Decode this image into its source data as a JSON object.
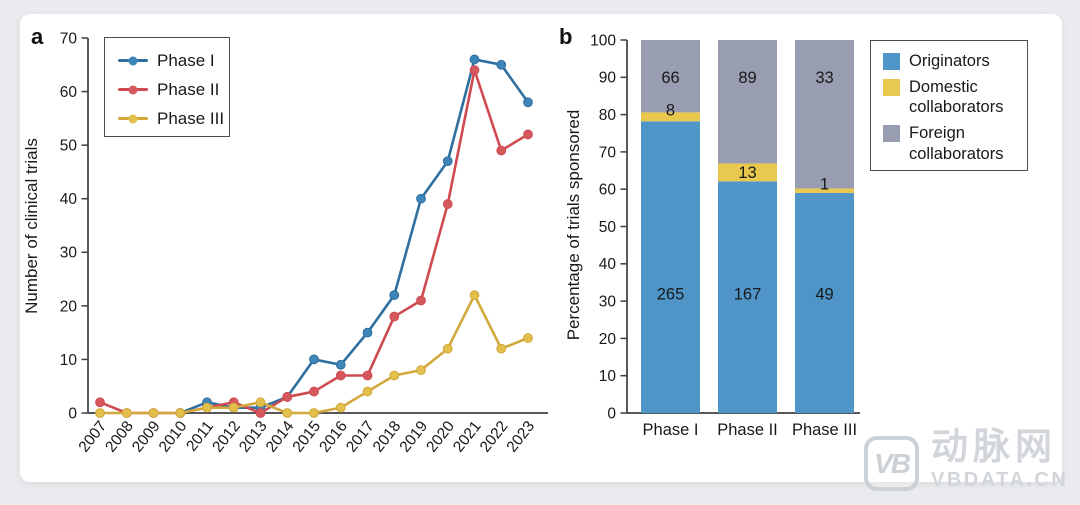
{
  "page": {
    "background_color": "#e9ebee",
    "card_background_color": "#ffffff"
  },
  "watermark": {
    "logo_text": "VB",
    "brand_text": "动脉网",
    "domain_text": "VBDATA.CN",
    "color": "#d2d6da"
  },
  "chart_data": [
    {
      "id": "a",
      "type": "line",
      "panel_label": "a",
      "title": "",
      "xlabel": "",
      "ylabel": "Number of clinical trials",
      "ylim": [
        0,
        70
      ],
      "yticks": [
        0,
        10,
        20,
        30,
        40,
        50,
        60,
        70
      ],
      "grid": false,
      "legend_position": "top-left",
      "x": [
        2007,
        2008,
        2009,
        2010,
        2011,
        2012,
        2013,
        2014,
        2015,
        2016,
        2017,
        2018,
        2019,
        2020,
        2021,
        2022,
        2023
      ],
      "series": [
        {
          "name": "Phase I",
          "color": "#2e6f9f",
          "marker_color": "#3e86b8",
          "values": [
            null,
            null,
            null,
            0,
            2,
            1,
            1,
            3,
            10,
            9,
            15,
            22,
            40,
            47,
            66,
            65,
            58
          ]
        },
        {
          "name": "Phase II",
          "color": "#cf4b51",
          "marker_color": "#d5585d",
          "values": [
            2,
            0,
            0,
            0,
            1,
            2,
            0,
            3,
            4,
            7,
            7,
            18,
            21,
            39,
            64,
            49,
            52
          ]
        },
        {
          "name": "Phase III",
          "color": "#d2a83c",
          "marker_color": "#e2c04b",
          "values": [
            0,
            0,
            0,
            0,
            1,
            1,
            2,
            0,
            0,
            1,
            4,
            7,
            8,
            12,
            22,
            12,
            14
          ]
        }
      ]
    },
    {
      "id": "b",
      "type": "bar",
      "stacked": true,
      "panel_label": "b",
      "title": "",
      "xlabel": "",
      "ylabel": "Percentage of trials sponsored",
      "ylim": [
        0,
        100
      ],
      "yticks": [
        0,
        10,
        20,
        30,
        40,
        50,
        60,
        70,
        80,
        90,
        100
      ],
      "grid": false,
      "legend_position": "top-right",
      "categories": [
        "Phase I",
        "Phase II",
        "Phase III"
      ],
      "series": [
        {
          "name": "Originators",
          "color": "#4f95c8",
          "counts": [
            265,
            167,
            49
          ],
          "percents": [
            78.2,
            62.1,
            59.0
          ]
        },
        {
          "name": "Domestic collaborators",
          "color": "#e9c84f",
          "counts": [
            8,
            13,
            1
          ],
          "percents": [
            2.4,
            4.8,
            1.2
          ]
        },
        {
          "name": "Foreign collaborators",
          "color": "#989db1",
          "counts": [
            66,
            89,
            33
          ],
          "percents": [
            19.4,
            33.1,
            39.8
          ]
        }
      ]
    }
  ]
}
